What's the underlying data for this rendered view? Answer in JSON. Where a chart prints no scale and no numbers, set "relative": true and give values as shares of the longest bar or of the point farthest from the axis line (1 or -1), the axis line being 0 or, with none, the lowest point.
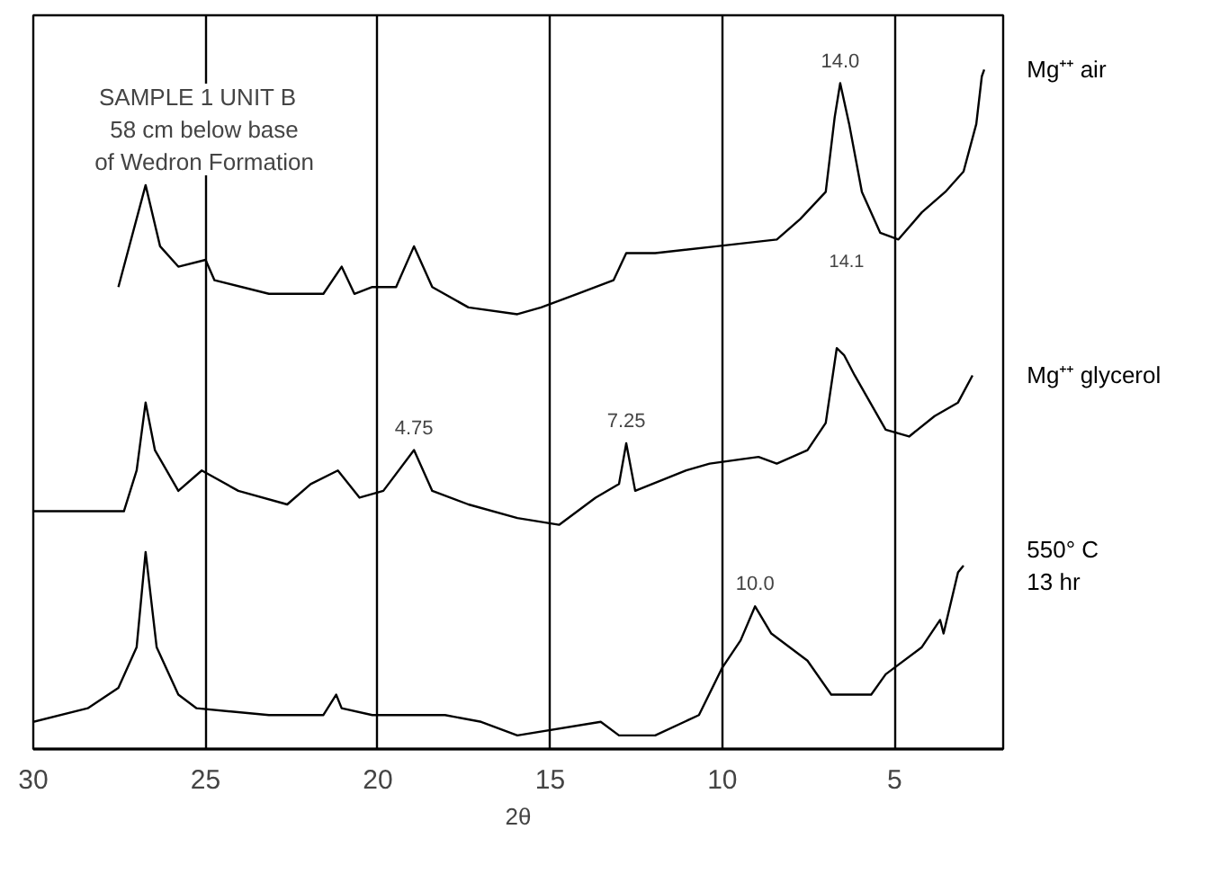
{
  "chart_data": {
    "type": "line",
    "relative": true,
    "xlabel": "2θ",
    "xlim": [
      30,
      1.85
    ],
    "xticks": [
      30,
      25,
      20,
      15,
      10,
      5
    ],
    "grid": "x",
    "legend": false,
    "marker": "none",
    "line_style": "solid",
    "annotations": [
      "SAMPLE 1   UNIT B\n58 cm below base\nof Wedron Formation",
      {
        "text": "14.0",
        "x": 6.58,
        "y": 0.98
      },
      "14.1",
      {
        "text": "4.75",
        "x": 18.95,
        "y": 0.44
      },
      {
        "text": "7.25",
        "x": 12.79,
        "y": 0.45
      },
      {
        "text": "10.0",
        "x": 9.05,
        "y": 0.21
      }
    ],
    "series": [
      {
        "name": "Mg⁺⁺ air",
        "color": "#000000",
        "x": [
          27.53,
          26.74,
          26.32,
          25.79,
          25.0,
          24.74,
          23.16,
          21.58,
          21.05,
          20.68,
          20.16,
          19.47,
          18.95,
          18.42,
          17.37,
          15.95,
          15.26,
          14.21,
          13.16,
          12.79,
          11.95,
          10.16,
          8.42,
          7.74,
          7.0,
          6.74,
          6.58,
          6.32,
          5.95,
          5.42,
          4.89,
          4.21,
          3.53,
          3.0,
          2.63,
          2.47,
          2.4
        ],
        "values": [
          0.68,
          0.83,
          0.74,
          0.71,
          0.72,
          0.69,
          0.67,
          0.67,
          0.71,
          0.67,
          0.68,
          0.68,
          0.74,
          0.68,
          0.65,
          0.64,
          0.65,
          0.67,
          0.69,
          0.73,
          0.73,
          0.74,
          0.75,
          0.78,
          0.82,
          0.93,
          0.98,
          0.92,
          0.82,
          0.76,
          0.75,
          0.79,
          0.82,
          0.85,
          0.92,
          0.99,
          1.0
        ]
      },
      {
        "name": "Mg⁺⁺ glycerol",
        "color": "#000000",
        "x": [
          30.0,
          28.42,
          27.37,
          27.0,
          26.74,
          26.47,
          25.79,
          25.11,
          24.05,
          22.63,
          21.95,
          21.16,
          20.53,
          19.84,
          18.95,
          18.42,
          17.37,
          15.95,
          14.74,
          13.68,
          13.0,
          12.79,
          12.53,
          11.05,
          10.37,
          8.95,
          8.42,
          7.53,
          7.0,
          6.68,
          6.47,
          6.16,
          5.26,
          4.58,
          3.84,
          3.16,
          2.74
        ],
        "values": [
          0.35,
          0.35,
          0.35,
          0.41,
          0.51,
          0.44,
          0.38,
          0.41,
          0.38,
          0.36,
          0.39,
          0.41,
          0.37,
          0.38,
          0.44,
          0.38,
          0.36,
          0.34,
          0.33,
          0.37,
          0.39,
          0.45,
          0.38,
          0.41,
          0.42,
          0.43,
          0.42,
          0.44,
          0.48,
          0.59,
          0.58,
          0.55,
          0.47,
          0.46,
          0.49,
          0.51,
          0.55
        ]
      },
      {
        "name": "550° C\n13 hr",
        "color": "#000000",
        "x": [
          30.0,
          28.42,
          27.53,
          27.0,
          26.74,
          26.42,
          25.79,
          25.26,
          23.16,
          21.58,
          21.21,
          21.05,
          20.16,
          18.05,
          17.0,
          15.95,
          13.53,
          13.0,
          11.95,
          10.68,
          10.0,
          9.47,
          9.05,
          8.58,
          8.05,
          7.53,
          6.84,
          5.68,
          5.26,
          4.21,
          3.68,
          3.58,
          3.16,
          3.0
        ],
        "values": [
          0.04,
          0.06,
          0.09,
          0.15,
          0.29,
          0.15,
          0.08,
          0.06,
          0.05,
          0.05,
          0.08,
          0.06,
          0.05,
          0.05,
          0.04,
          0.02,
          0.04,
          0.02,
          0.02,
          0.05,
          0.12,
          0.16,
          0.21,
          0.17,
          0.15,
          0.13,
          0.08,
          0.08,
          0.11,
          0.15,
          0.19,
          0.17,
          0.26,
          0.27
        ]
      }
    ]
  }
}
